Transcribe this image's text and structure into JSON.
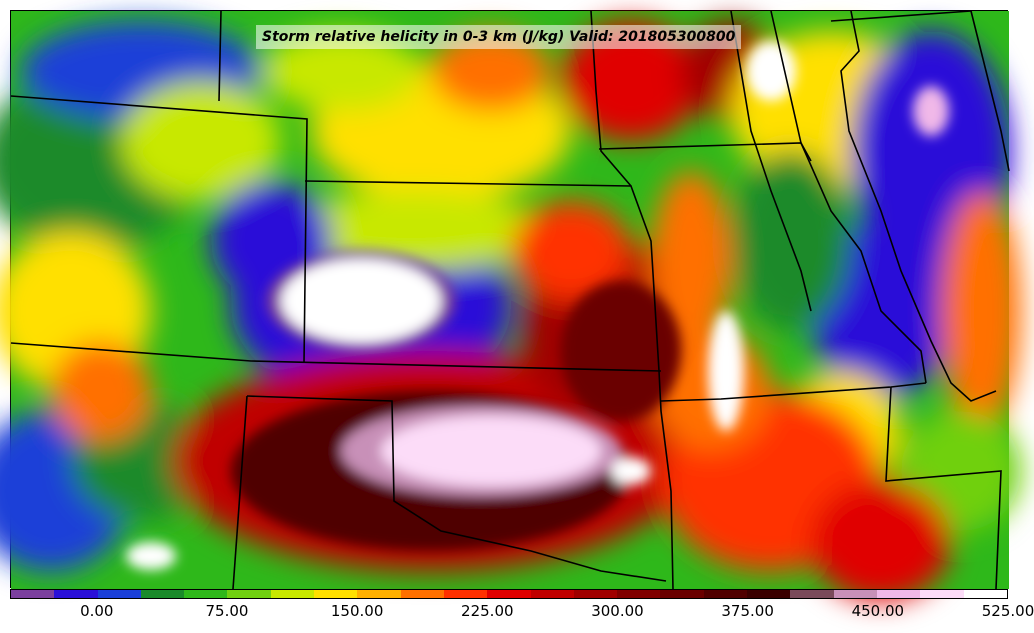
{
  "title": "Storm relative helicity in 0-3 km (J/kg) Valid: 201805300800",
  "colorbar": {
    "colors": [
      "#7b3f9e",
      "#2a10d8",
      "#1a3fd8",
      "#1a8a2a",
      "#2eb81a",
      "#70d010",
      "#c8e800",
      "#ffe000",
      "#ffb000",
      "#ff7000",
      "#ff3000",
      "#e00000",
      "#c00000",
      "#a00000",
      "#800000",
      "#6a0000",
      "#500000",
      "#3a0000",
      "#7a4a5a",
      "#c890b8",
      "#f0b8e8",
      "#fcdcf8",
      "#ffffff"
    ],
    "tick_labels": [
      "0.00",
      "75.00",
      "150.00",
      "225.00",
      "300.00",
      "375.00",
      "450.00",
      "525.00"
    ]
  },
  "icons": [
    "storm-relative-helicity-field",
    "state-boundary-lines"
  ]
}
